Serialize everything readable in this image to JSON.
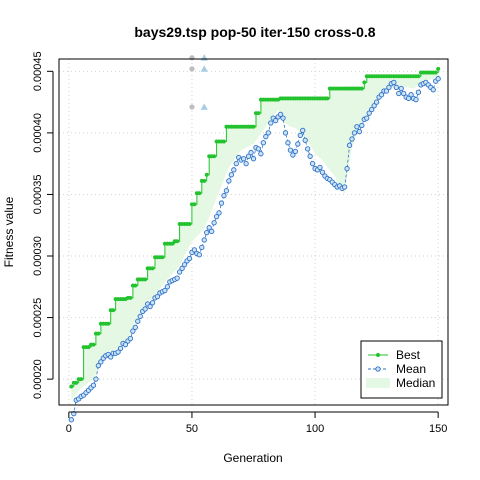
{
  "chart_data": {
    "type": "line",
    "title": "bays29.tsp pop-50 iter-150 cross-0.8",
    "xlabel": "Generation",
    "ylabel": "Fitness value",
    "xlim": [
      -4,
      154
    ],
    "ylim": [
      0.000179,
      0.00046
    ],
    "x_ticks": [
      0,
      50,
      100,
      150
    ],
    "x_tick_labels": [
      "0",
      "50",
      "100",
      "150"
    ],
    "y_ticks": [
      0.0002,
      0.00025,
      0.0003,
      0.00035,
      0.0004,
      0.00045
    ],
    "y_tick_labels": [
      "0.00020",
      "0.00025",
      "0.00030",
      "0.00035",
      "0.00040",
      "0.00045"
    ],
    "grid": true,
    "legend_position": "bottom-right",
    "colors": {
      "best": "#22c32e",
      "mean": "#2c72c7",
      "median_fill": "#e5f8e3",
      "mean_point_fill": "#cfe3f6",
      "grid": "#d3d3d3",
      "marker_gray": "#bebebe",
      "marker_blue": "#a8cde6"
    },
    "legend": [
      {
        "label": "Best",
        "style": "best"
      },
      {
        "label": "Mean",
        "style": "mean"
      },
      {
        "label": "Median",
        "style": "median"
      }
    ],
    "series": [
      {
        "name": "Best",
        "key": "best",
        "x_start": 1,
        "x_end": 150,
        "steps": [
          [
            1,
            0.000194
          ],
          [
            2,
            0.000197
          ],
          [
            4,
            0.0002
          ],
          [
            6,
            0.000226
          ],
          [
            9,
            0.000228
          ],
          [
            11,
            0.000237
          ],
          [
            13,
            0.000245
          ],
          [
            17,
            0.000256
          ],
          [
            19,
            0.000265
          ],
          [
            24,
            0.000266
          ],
          [
            26,
            0.000276
          ],
          [
            28,
            0.000281
          ],
          [
            32,
            0.00029
          ],
          [
            35,
            0.000299
          ],
          [
            39,
            0.00031
          ],
          [
            43,
            0.000312
          ],
          [
            45,
            0.000326
          ],
          [
            50,
            0.000342
          ],
          [
            52,
            0.000351
          ],
          [
            54,
            0.000361
          ],
          [
            56,
            0.000366
          ],
          [
            57,
            0.000381
          ],
          [
            60,
            0.000393
          ],
          [
            64,
            0.000405
          ],
          [
            76,
            0.000416
          ],
          [
            78,
            0.000427
          ],
          [
            86,
            0.000428
          ],
          [
            106,
            0.000436
          ],
          [
            120,
            0.000441
          ],
          [
            121,
            0.000446
          ],
          [
            143,
            0.000449
          ],
          [
            150,
            0.000452
          ]
        ]
      },
      {
        "name": "Mean",
        "key": "mean",
        "x": [
          1,
          2,
          3,
          4,
          5,
          6,
          7,
          8,
          9,
          10,
          11,
          12,
          13,
          14,
          15,
          16,
          17,
          18,
          19,
          20,
          21,
          22,
          23,
          24,
          25,
          26,
          27,
          28,
          29,
          30,
          31,
          32,
          33,
          34,
          35,
          36,
          37,
          38,
          39,
          40,
          41,
          42,
          43,
          44,
          45,
          46,
          47,
          48,
          49,
          50,
          51,
          52,
          53,
          54,
          55,
          56,
          57,
          58,
          59,
          60,
          61,
          62,
          63,
          64,
          65,
          66,
          67,
          68,
          69,
          70,
          71,
          72,
          73,
          74,
          75,
          76,
          77,
          78,
          79,
          80,
          81,
          82,
          83,
          84,
          85,
          86,
          87,
          88,
          89,
          90,
          91,
          92,
          93,
          94,
          95,
          96,
          97,
          98,
          99,
          100,
          101,
          102,
          103,
          104,
          105,
          106,
          107,
          108,
          109,
          110,
          111,
          112,
          113,
          114,
          115,
          116,
          117,
          118,
          119,
          120,
          121,
          122,
          123,
          124,
          125,
          126,
          127,
          128,
          129,
          130,
          131,
          132,
          133,
          134,
          135,
          136,
          137,
          138,
          139,
          140,
          141,
          142,
          143,
          144,
          145,
          146,
          147,
          148,
          149,
          150
        ],
        "y": [
          0.000167,
          0.000172,
          0.000183,
          0.000184,
          0.000186,
          0.000187,
          0.000189,
          0.000191,
          0.000193,
          0.000195,
          0.0002,
          0.000211,
          0.000214,
          0.000217,
          0.000219,
          0.00022,
          0.000218,
          0.000221,
          0.000221,
          0.000222,
          0.000225,
          0.000229,
          0.000228,
          0.000231,
          0.000233,
          0.000239,
          0.000242,
          0.000247,
          0.000251,
          0.000255,
          0.000257,
          0.000261,
          0.000259,
          0.000262,
          0.000266,
          0.000267,
          0.00027,
          0.000271,
          0.000272,
          0.000275,
          0.000279,
          0.00028,
          0.000281,
          0.000282,
          0.000287,
          0.00029,
          0.000293,
          0.000296,
          0.000298,
          0.000303,
          0.000305,
          0.000302,
          0.000301,
          0.000307,
          0.000313,
          0.000319,
          0.000323,
          0.00032,
          0.000327,
          0.000332,
          0.000335,
          0.000343,
          0.000349,
          0.000353,
          0.000361,
          0.000366,
          0.00037,
          0.000375,
          0.00038,
          0.000378,
          0.000379,
          0.000375,
          0.000381,
          0.000384,
          0.000379,
          0.000388,
          0.000387,
          0.000383,
          0.000392,
          0.000397,
          0.0004,
          0.000408,
          0.000412,
          0.00041,
          0.000413,
          0.000415,
          0.000412,
          0.0004,
          0.000392,
          0.000386,
          0.000382,
          0.000385,
          0.000391,
          0.000398,
          0.000402,
          0.000394,
          0.000387,
          0.000381,
          0.000375,
          0.000371,
          0.00037,
          0.000372,
          0.000368,
          0.000365,
          0.000363,
          0.000362,
          0.00036,
          0.000358,
          0.000356,
          0.000357,
          0.000355,
          0.000356,
          0.000371,
          0.00039,
          0.000395,
          0.0004,
          0.000405,
          0.000401,
          0.000406,
          0.000411,
          0.000412,
          0.000416,
          0.000419,
          0.000422,
          0.000425,
          0.000429,
          0.000431,
          0.000434,
          0.000434,
          0.000437,
          0.00044,
          0.000441,
          0.000437,
          0.000432,
          0.000436,
          0.000432,
          0.000429,
          0.000428,
          0.000431,
          0.000428,
          0.000427,
          0.000433,
          0.000439,
          0.00044,
          0.000441,
          0.000439,
          0.000437,
          0.000435,
          0.000442,
          0.000444
        ]
      },
      {
        "name": "Median",
        "key": "median",
        "style": "band_between_best_and",
        "x": [
          1,
          5,
          10,
          15,
          20,
          25,
          30,
          35,
          40,
          45,
          50,
          55,
          60,
          65,
          70,
          75,
          80,
          85,
          86,
          88,
          90,
          92,
          95,
          98,
          100,
          103,
          105,
          108,
          110,
          112,
          113,
          115,
          118,
          120,
          125,
          130,
          135,
          140,
          145,
          150
        ],
        "y": [
          0.000183,
          0.000193,
          0.0002,
          0.000221,
          0.000225,
          0.000236,
          0.000257,
          0.000268,
          0.000281,
          0.000292,
          0.000312,
          0.000322,
          0.000347,
          0.000372,
          0.000386,
          0.000391,
          0.000405,
          0.000419,
          0.000413,
          0.000408,
          0.000405,
          0.000404,
          0.000398,
          0.00039,
          0.000383,
          0.000378,
          0.000372,
          0.000365,
          0.000355,
          0.00035,
          0.000365,
          0.000388,
          0.000405,
          0.000412,
          0.000426,
          0.000436,
          0.000438,
          0.000436,
          0.000442,
          0.000446
        ]
      }
    ],
    "extra_points": [
      {
        "x": 50,
        "y": 0.000461,
        "shape": "circle",
        "color": "marker_gray"
      },
      {
        "x": 50,
        "y": 0.000452,
        "shape": "circle",
        "color": "marker_gray"
      },
      {
        "x": 50,
        "y": 0.000421,
        "shape": "circle",
        "color": "marker_gray"
      },
      {
        "x": 55,
        "y": 0.000461,
        "shape": "triangle",
        "color": "marker_blue"
      },
      {
        "x": 55,
        "y": 0.000452,
        "shape": "triangle",
        "color": "marker_blue"
      },
      {
        "x": 55,
        "y": 0.000421,
        "shape": "triangle",
        "color": "marker_blue"
      }
    ]
  }
}
